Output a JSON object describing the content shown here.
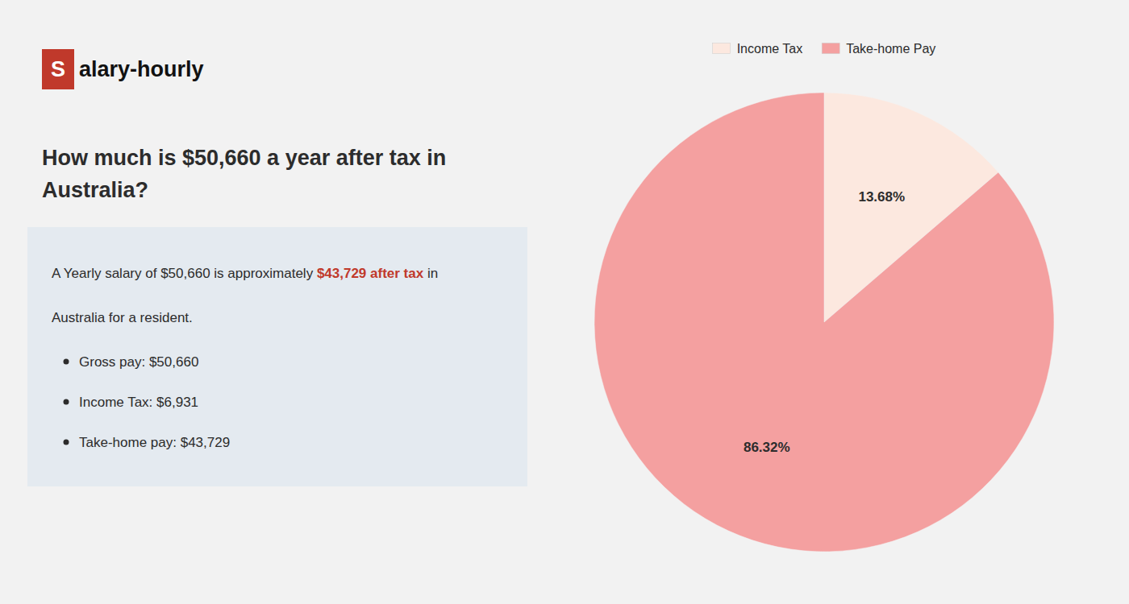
{
  "chart_data": {
    "type": "pie",
    "title": "How much is $50,660 a year after tax in\nAustralia?",
    "categories": [
      "Income Tax",
      "Take-home Pay"
    ],
    "values": [
      13.68,
      86.32
    ],
    "value_labels": [
      "13.68%",
      "86.32%"
    ],
    "colors": [
      "#fce8df",
      "#f4a0a0"
    ],
    "data_labels": true,
    "legend": "top",
    "annotations": [
      {
        "text": "S",
        "color": "#c0392b"
      },
      {
        "text": "alary-hourly"
      },
      {
        "text": "A Yearly salary of $50,660 is approximately "
      },
      {
        "text": "$43,729 after tax",
        "color": "#c0392b"
      },
      {
        "text": " in"
      },
      {
        "text": "Australia for a resident."
      },
      {
        "text": "Gross pay: $50,660"
      },
      {
        "text": "Income Tax: $6,931"
      },
      {
        "text": "Take-home pay: $43,729"
      }
    ]
  }
}
